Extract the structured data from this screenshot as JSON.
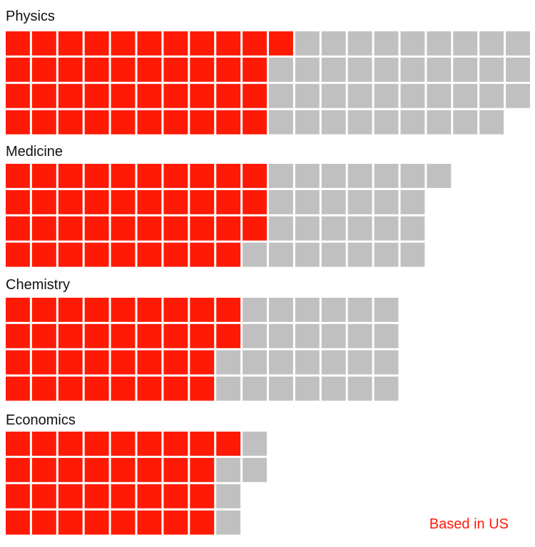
{
  "chart_data": {
    "type": "waffle",
    "unit": "one square per laureate",
    "rows_per_group": 4,
    "fill_order": "column-major, top to bottom",
    "groups": [
      {
        "name": "Physics",
        "total": 79,
        "based_in_us": 41
      },
      {
        "name": "Medicine",
        "total": 65,
        "based_in_us": 39
      },
      {
        "name": "Chemistry",
        "total": 60,
        "based_in_us": 34
      },
      {
        "name": "Economics",
        "total": 38,
        "based_in_us": 33
      }
    ],
    "legend": {
      "label": "Based in US",
      "placement": "bottom-right"
    },
    "colors": {
      "based_in_us": "#ff1a05",
      "other": "#c0c0c0",
      "background": "#ffffff"
    }
  }
}
